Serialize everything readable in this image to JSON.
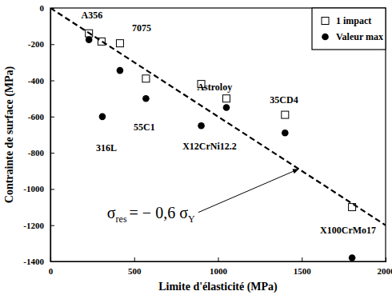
{
  "chart_data": {
    "type": "scatter",
    "x_label": "Limite d'élasticité (MPa)",
    "y_label": "Contrainte de surface (MPa)",
    "xlim": [
      0,
      2000
    ],
    "xticks": [
      0,
      500,
      1000,
      1500,
      2000
    ],
    "ylim": [
      -1400,
      0
    ],
    "yticks": [
      -1400,
      -1200,
      -1000,
      -800,
      -600,
      -400,
      -200,
      0
    ],
    "legend": "upper-right",
    "series": [
      {
        "name": "1 impact",
        "type": "scatter",
        "marker": "open-square",
        "color": "#000000",
        "x": [
          230,
          305,
          415,
          570,
          900,
          1050,
          1400,
          1800
        ],
        "values": [
          -140,
          -185,
          -195,
          -390,
          -420,
          -500,
          -590,
          -1100
        ]
      },
      {
        "name": "Valeur max",
        "type": "scatter",
        "marker": "circle",
        "color": "#000000",
        "x": [
          230,
          310,
          415,
          570,
          900,
          1050,
          1400,
          1800
        ],
        "values": [
          -175,
          -600,
          -345,
          -500,
          -650,
          -550,
          -690,
          -1380
        ]
      },
      {
        "type": "line",
        "line_style": "dashed",
        "color": "#000000",
        "x": [
          0,
          2000
        ],
        "values": [
          0,
          -1200
        ]
      }
    ],
    "annotations": [
      {
        "text": "A356",
        "x": 248,
        "y": -40
      },
      {
        "text": "7075",
        "x": 544,
        "y": -110
      },
      {
        "text": "55C1",
        "x": 560,
        "y": -655
      },
      {
        "text": "316L",
        "x": 334,
        "y": -773
      },
      {
        "text": "X12CrNi12.2",
        "x": 950,
        "y": -764
      },
      {
        "text": "Astroloy",
        "x": 980,
        "y": -435
      },
      {
        "text": "35CD4",
        "x": 1394,
        "y": -508
      },
      {
        "text": "X100CrMo17",
        "x": 1776,
        "y": -1227
      },
      {
        "parts": [
          "σ",
          "res",
          "= − 0,6 σ",
          "Y"
        ],
        "x": 600,
        "y": -1160,
        "arrow_to": [
          1480,
          -890
        ]
      }
    ]
  }
}
